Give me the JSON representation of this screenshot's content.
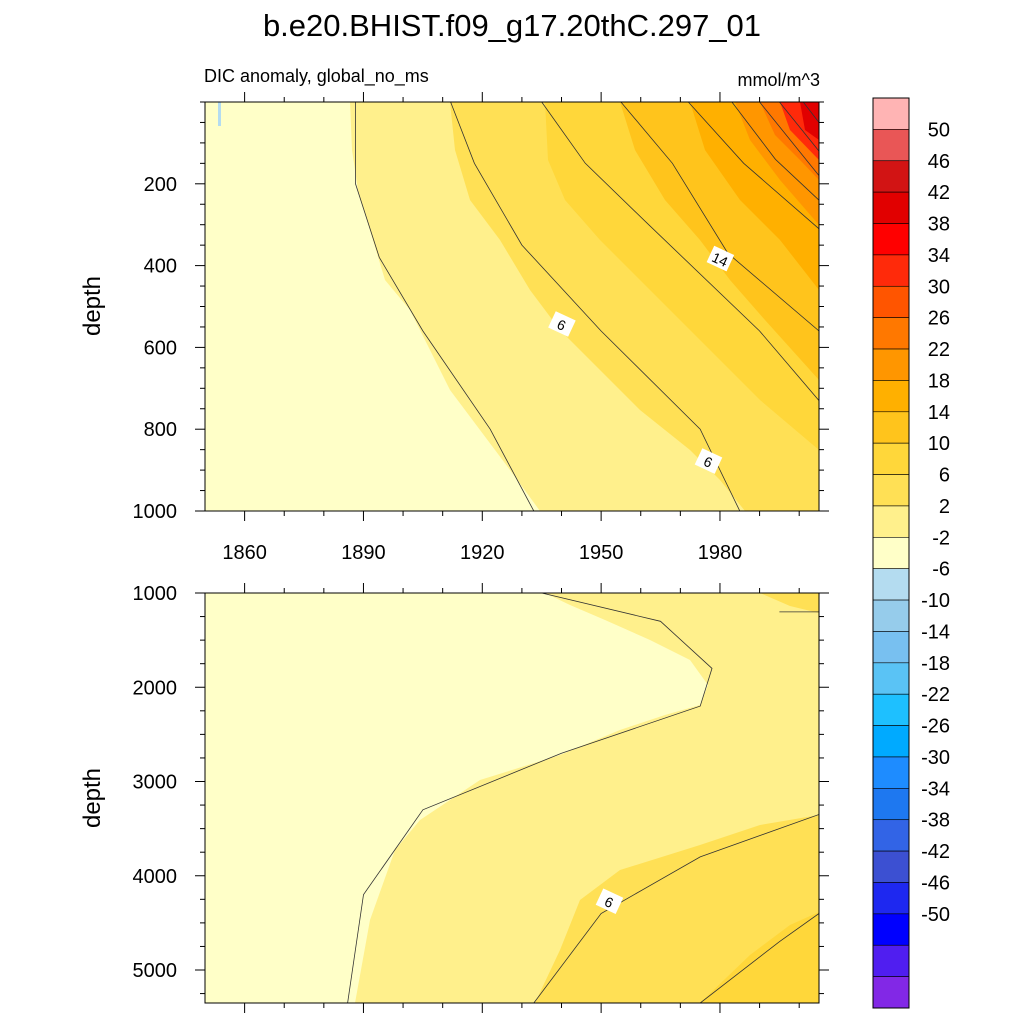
{
  "title": "b.e20.BHIST.f09_g17.20thC.297_01",
  "subtitle_left": "DIC anomaly, global_no_ms",
  "subtitle_right": "mmol/m^3",
  "colorbar": {
    "labels": [
      "50",
      "46",
      "42",
      "38",
      "34",
      "30",
      "26",
      "22",
      "18",
      "14",
      "10",
      "6",
      "2",
      "-2",
      "-6",
      "-10",
      "-14",
      "-18",
      "-22",
      "-26",
      "-30",
      "-34",
      "-38",
      "-42",
      "-46",
      "-50"
    ],
    "colors": [
      "#ffb4b4",
      "#e95656",
      "#d21414",
      "#e10000",
      "#ff0000",
      "#ff2a0a",
      "#ff5500",
      "#ff7800",
      "#ff9600",
      "#ffb000",
      "#ffc41c",
      "#ffd73a",
      "#ffe055",
      "#fff08c",
      "#ffffc8",
      "#b4dcf0",
      "#96cceb",
      "#78c0f0",
      "#5ac3f5",
      "#1ec0ff",
      "#00aaff",
      "#1e8cff",
      "#1e78f0",
      "#3264e6",
      "#3c50d2",
      "#1e28f0",
      "#0000ff",
      "#501ef0",
      "#8228e6"
    ]
  },
  "chart_data": [
    {
      "type": "contour",
      "panel": "upper",
      "xlabel": "",
      "ylabel": "depth",
      "xlim": [
        1850,
        2005
      ],
      "ylim": [
        1000,
        0
      ],
      "xticks": [
        1860,
        1890,
        1920,
        1950,
        1980
      ],
      "yticks": [
        200,
        400,
        600,
        800,
        1000
      ],
      "contour_levels": [
        -2,
        2,
        6,
        10,
        14,
        18,
        22,
        26,
        30,
        34,
        38,
        42,
        46,
        50
      ],
      "contour_labels": [
        {
          "text": "14",
          "x": 1980,
          "y": 385
        },
        {
          "text": "6",
          "x": 1940,
          "y": 545
        },
        {
          "text": "6",
          "x": 1977,
          "y": 880
        }
      ],
      "contours": [
        {
          "level": 2,
          "points": [
            [
              1888,
              0
            ],
            [
              1888,
              200
            ],
            [
              1894,
              380
            ],
            [
              1905,
              560
            ],
            [
              1922,
              800
            ],
            [
              1933,
              1000
            ]
          ]
        },
        {
          "level": 6,
          "points": [
            [
              1912,
              0
            ],
            [
              1918,
              150
            ],
            [
              1930,
              350
            ],
            [
              1950,
              560
            ],
            [
              1975,
              800
            ],
            [
              1985,
              1000
            ]
          ]
        },
        {
          "level": 10,
          "points": [
            [
              1935,
              0
            ],
            [
              1946,
              150
            ],
            [
              1962,
              300
            ],
            [
              1990,
              560
            ],
            [
              2005,
              730
            ]
          ]
        },
        {
          "level": 14,
          "points": [
            [
              1955,
              0
            ],
            [
              1968,
              150
            ],
            [
              1982,
              370
            ],
            [
              2005,
              560
            ]
          ]
        },
        {
          "level": 18,
          "points": [
            [
              1972,
              0
            ],
            [
              1986,
              150
            ],
            [
              2005,
              310
            ]
          ]
        },
        {
          "level": 22,
          "points": [
            [
              1983,
              0
            ],
            [
              1994,
              140
            ],
            [
              2005,
              240
            ]
          ]
        },
        {
          "level": 26,
          "points": [
            [
              1990,
              0
            ],
            [
              2000,
              120
            ],
            [
              2005,
              180
            ]
          ]
        },
        {
          "level": 30,
          "points": [
            [
              1995,
              0
            ],
            [
              2005,
              120
            ]
          ]
        },
        {
          "level": 34,
          "points": [
            [
              2001,
              0
            ],
            [
              2005,
              50
            ]
          ]
        }
      ]
    },
    {
      "type": "contour",
      "panel": "lower",
      "xlabel": "",
      "ylabel": "depth",
      "xlim": [
        1850,
        2005
      ],
      "ylim": [
        5350,
        1000
      ],
      "yticks": [
        1000,
        2000,
        3000,
        4000,
        5000
      ],
      "contour_levels": [
        -2,
        2,
        6,
        10
      ],
      "contour_labels": [
        {
          "text": "6",
          "x": 1952,
          "y": 4280
        }
      ],
      "contours": [
        {
          "level": 2,
          "points": [
            [
              1935,
              1000
            ],
            [
              1965,
              1300
            ],
            [
              1978,
              1800
            ],
            [
              1975,
              2200
            ],
            [
              1940,
              2700
            ],
            [
              1905,
              3300
            ],
            [
              1890,
              4200
            ],
            [
              1886,
              5350
            ]
          ]
        },
        {
          "level": 2,
          "points": [
            [
              1986,
              1000
            ],
            [
              2005,
              1000
            ]
          ]
        },
        {
          "level": 2,
          "points": [
            [
              2005,
              1200
            ],
            [
              1995,
              1200
            ]
          ]
        },
        {
          "level": 6,
          "points": [
            [
              1933,
              5350
            ],
            [
              1950,
              4400
            ],
            [
              1975,
              3800
            ],
            [
              2005,
              3350
            ]
          ]
        },
        {
          "level": 10,
          "points": [
            [
              1975,
              5350
            ],
            [
              1995,
              4700
            ],
            [
              2005,
              4400
            ]
          ]
        }
      ]
    }
  ]
}
